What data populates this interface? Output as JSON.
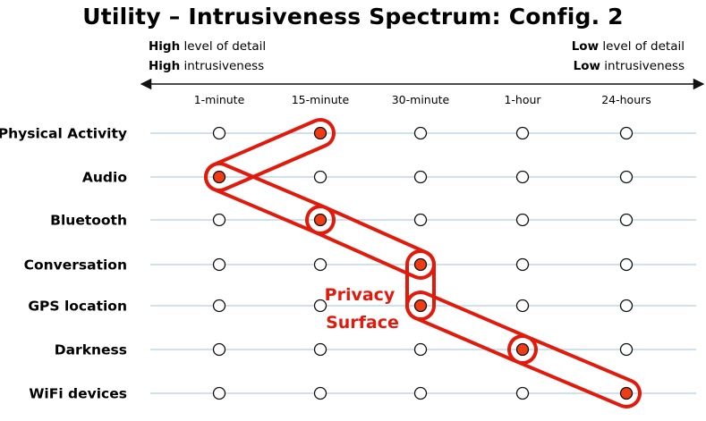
{
  "title": "Utility – Intrusiveness Spectrum: Config. 2",
  "left_header": {
    "line1_bold": "High",
    "line1_rest": "level of detail",
    "line2_bold": "High",
    "line2_rest": "intrusiveness"
  },
  "right_header": {
    "line1_bold": "Low",
    "line1_rest": "level of detail",
    "line2_bold": "Low",
    "line2_rest": "intrusiveness"
  },
  "columns": [
    "1-minute",
    "15-minute",
    "30-minute",
    "1-hour",
    "24-hours"
  ],
  "rows": [
    {
      "label": "Physical Activity",
      "selected": 1
    },
    {
      "label": "Audio",
      "selected": 0
    },
    {
      "label": "Bluetooth",
      "selected": 1
    },
    {
      "label": "Conversation",
      "selected": 2
    },
    {
      "label": "GPS location",
      "selected": 2
    },
    {
      "label": "Darkness",
      "selected": 3
    },
    {
      "label": "WiFi devices",
      "selected": 4
    }
  ],
  "surface_label": [
    "Privacy",
    "Surface"
  ],
  "colors": {
    "accent": "#e11a0c",
    "selected_fill": "#f03c14",
    "gridline": "#9dc3d8",
    "outline": "#111111"
  }
}
